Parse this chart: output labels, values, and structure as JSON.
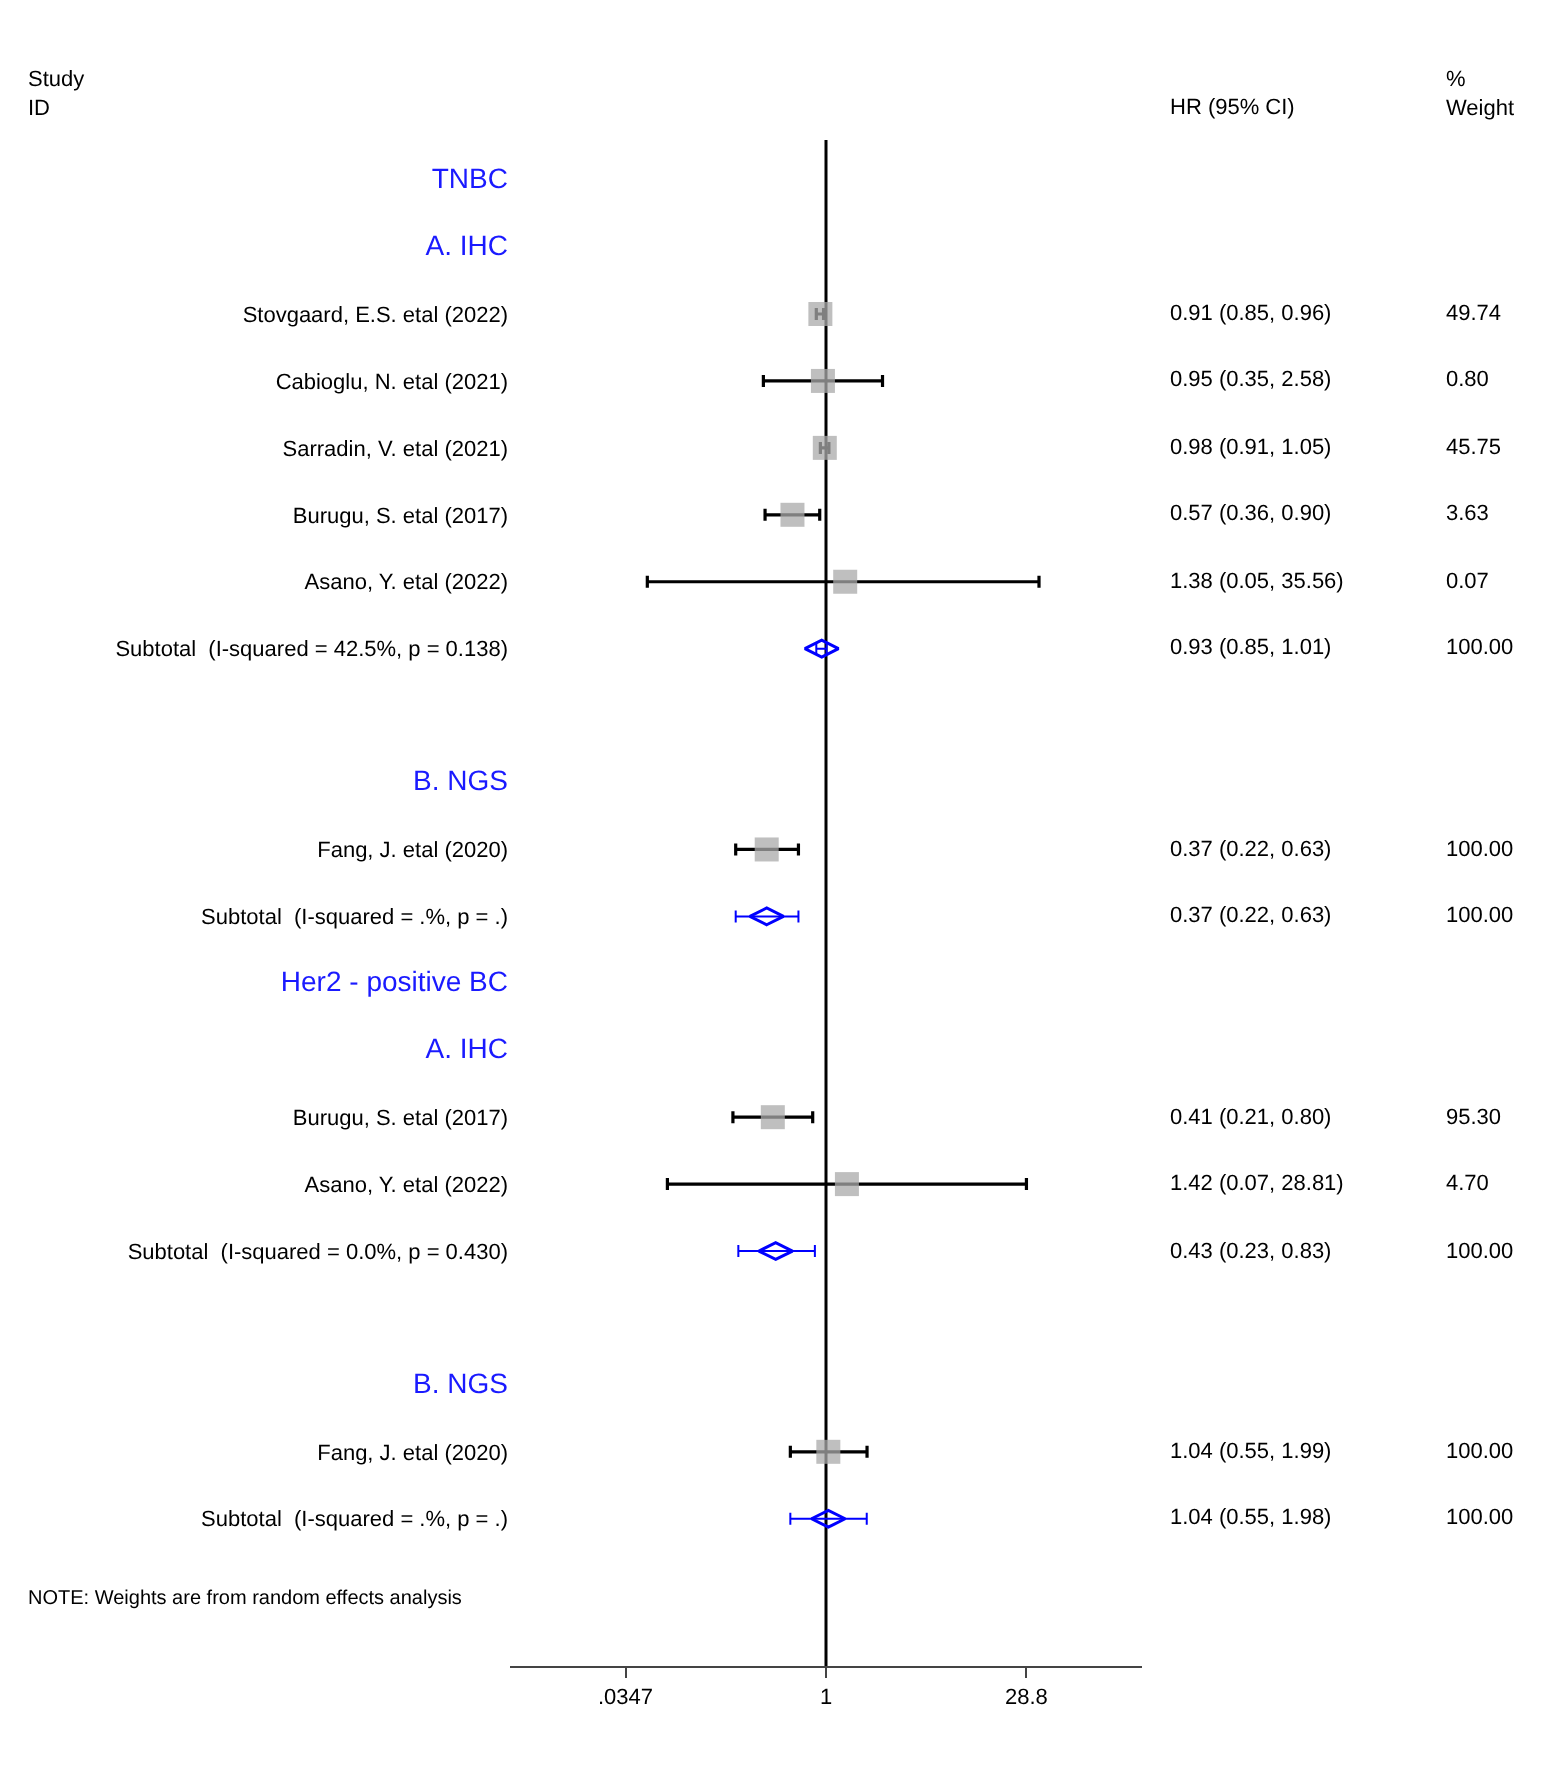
{
  "chart_data": {
    "type": "scatter",
    "orientation": "horizontal",
    "log": "x",
    "grid": false,
    "categories": [
      "TNBC",
      "A. IHC",
      "Stovgaard, E.S. etal (2022)",
      "Cabioglu, N. etal (2021)",
      "Sarradin, V. etal (2021)",
      "Burugu, S. etal (2017)",
      "Asano, Y. etal (2022)",
      "Subtotal  (I-squared = 42.5%, p = 0.138)",
      null,
      "B. NGS",
      "Fang, J. etal (2020)",
      "Subtotal  (I-squared = .%, p = .)",
      "Her2 - positive BC",
      "A. IHC",
      "Burugu, S. etal (2017)",
      "Asano, Y. etal (2022)",
      "Subtotal  (I-squared = 0.0%, p = 0.430)",
      null,
      "B. NGS",
      "Fang, J. etal (2020)",
      "Subtotal  (I-squared = .%, p = .)"
    ],
    "series": [
      {
        "type": "scatter",
        "marker": "square",
        "color": "#a9a9a9",
        "values": [
          null,
          null,
          0.91,
          0.95,
          0.98,
          0.57,
          1.38,
          null,
          null,
          null,
          0.37,
          null,
          null,
          null,
          0.41,
          1.42,
          null,
          null,
          null,
          1.04,
          null
        ],
        "errors": [
          null,
          null,
          [
            0.85,
            0.96
          ],
          [
            0.35,
            2.58
          ],
          [
            0.91,
            1.05
          ],
          [
            0.36,
            0.9
          ],
          [
            0.05,
            35.56
          ],
          null,
          null,
          null,
          [
            0.22,
            0.63
          ],
          null,
          null,
          null,
          [
            0.21,
            0.8
          ],
          [
            0.07,
            28.81
          ],
          null,
          null,
          null,
          [
            0.55,
            1.99
          ],
          null
        ]
      },
      {
        "type": "scatter",
        "marker": "diamond",
        "color": "#0000ff",
        "values": [
          null,
          null,
          null,
          null,
          null,
          null,
          null,
          0.93,
          null,
          null,
          null,
          0.37,
          null,
          null,
          null,
          null,
          0.43,
          null,
          null,
          null,
          1.04
        ],
        "errors": [
          null,
          null,
          null,
          null,
          null,
          null,
          null,
          [
            0.85,
            1.01
          ],
          null,
          null,
          null,
          [
            0.22,
            0.63
          ],
          null,
          null,
          null,
          null,
          [
            0.23,
            0.83
          ],
          null,
          null,
          null,
          [
            0.55,
            1.98
          ]
        ]
      }
    ],
    "xlim": [
      0.005,
      200
    ],
    "xticks": [
      {
        "value": 0.0347,
        "label": ".0347"
      },
      1,
      28.8
    ],
    "ref_lines": [
      {
        "axis": "x",
        "value": 1,
        "color": "#000000"
      }
    ],
    "annotations": [
      "Study\nID",
      "HR (95% CI)",
      "%\nWeight",
      "0.91 (0.85, 0.96)",
      "49.74",
      "0.95 (0.35, 2.58)",
      "0.80",
      "0.98 (0.91, 1.05)",
      "45.75",
      "0.57 (0.36, 0.90)",
      "3.63",
      "1.38 (0.05, 35.56)",
      "0.07",
      "0.93 (0.85, 1.01)",
      "100.00",
      "0.37 (0.22, 0.63)",
      "100.00",
      "0.37 (0.22, 0.63)",
      "100.00",
      "0.41 (0.21, 0.80)",
      "95.30",
      "1.42 (0.07, 28.81)",
      "4.70",
      "0.43 (0.23, 0.83)",
      "100.00",
      "1.04 (0.55, 1.99)",
      "100.00",
      "1.04 (0.55, 1.98)",
      "100.00",
      "NOTE: Weights are from random effects analysis"
    ]
  }
}
